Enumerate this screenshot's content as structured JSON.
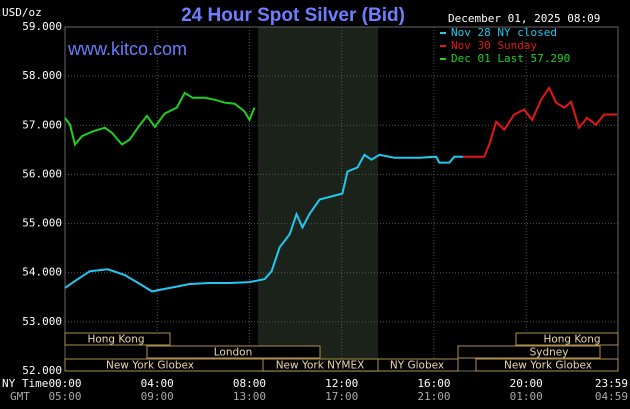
{
  "chart_data": {
    "type": "line",
    "title": "24 Hour Spot Silver (Bid)",
    "y_label": "USD/oz",
    "website": "www.kitco.com",
    "timestamp": "December 01, 2025 08:09",
    "x_label": "NY Time",
    "x2_label": "GMT",
    "xlim": [
      0,
      23.983
    ],
    "xticks": [
      {
        "value": 0,
        "label": "00:00"
      },
      {
        "value": 4,
        "label": "04:00"
      },
      {
        "value": 8,
        "label": "08:00"
      },
      {
        "value": 12,
        "label": "12:00"
      },
      {
        "value": 16,
        "label": "16:00"
      },
      {
        "value": 20,
        "label": "20:00"
      },
      {
        "value": 23.983,
        "label": "23:59"
      }
    ],
    "x2tick_labels": [
      "05:00",
      "09:00",
      "13:00",
      "17:00",
      "21:00",
      "01:00",
      "04:59"
    ],
    "ylim": [
      52,
      59
    ],
    "yticks": [
      {
        "value": 52,
        "label": "52.000"
      },
      {
        "value": 53,
        "label": "53.000"
      },
      {
        "value": 54,
        "label": "54.000"
      },
      {
        "value": 55,
        "label": "55.000"
      },
      {
        "value": 56,
        "label": "56.000"
      },
      {
        "value": 57,
        "label": "57.000"
      },
      {
        "value": 58,
        "label": "58.000"
      },
      {
        "value": 59,
        "label": "59.000"
      }
    ],
    "grid": true,
    "legend": "top-right",
    "sessions": [
      "Hong Kong",
      "London",
      "New York Globex",
      "New York NYMEX",
      "NY Globex",
      "Hong Kong",
      "Sydney",
      "New York Globex"
    ],
    "series": [
      {
        "name": "Nov 28 NY closed",
        "color": "#22c8f0",
        "x": [
          0,
          0.43,
          1.08,
          1.86,
          2.6,
          3.25,
          3.77,
          4.33,
          4.76,
          5.41,
          6.28,
          7.14,
          8.0,
          8.66,
          8.96,
          9.31,
          9.74,
          10.04,
          10.3,
          10.6,
          11.04,
          11.69,
          12.03,
          12.25,
          12.68,
          12.99,
          13.29,
          13.64,
          14.29,
          15.37,
          16.1,
          16.23,
          16.67,
          16.88,
          17.27
        ],
        "values": [
          53.69,
          53.83,
          54.03,
          54.07,
          53.95,
          53.77,
          53.62,
          53.67,
          53.71,
          53.77,
          53.79,
          53.79,
          53.81,
          53.87,
          54.03,
          54.52,
          54.78,
          55.19,
          54.92,
          55.19,
          55.49,
          55.57,
          55.61,
          56.06,
          56.14,
          56.4,
          56.3,
          56.4,
          56.34,
          56.34,
          56.36,
          56.24,
          56.24,
          56.36,
          56.36
        ]
      },
      {
        "name": "Nov 30 Sunday",
        "color": "#e01818",
        "x": [
          17.27,
          18.18,
          18.4,
          18.7,
          19.05,
          19.48,
          19.91,
          20.26,
          20.65,
          21.0,
          21.3,
          21.65,
          21.95,
          22.29,
          22.64,
          23.03,
          23.38,
          23.94
        ],
        "values": [
          56.36,
          56.36,
          56.61,
          57.07,
          56.91,
          57.22,
          57.32,
          57.11,
          57.52,
          57.76,
          57.46,
          57.36,
          57.48,
          56.95,
          57.15,
          57.01,
          57.22,
          57.22
        ]
      },
      {
        "name": "Dec 01 Last 57.290",
        "color": "#20d020",
        "x": [
          0,
          0.22,
          0.43,
          0.74,
          1.17,
          1.73,
          2.03,
          2.47,
          2.81,
          3.16,
          3.55,
          3.9,
          4.33,
          4.85,
          5.19,
          5.54,
          6.06,
          6.49,
          6.93,
          7.36,
          7.79,
          8.0,
          8.22
        ],
        "values": [
          57.15,
          57.01,
          56.61,
          56.78,
          56.87,
          56.95,
          56.85,
          56.61,
          56.71,
          56.95,
          57.19,
          56.97,
          57.24,
          57.36,
          57.66,
          57.56,
          57.56,
          57.52,
          57.46,
          57.44,
          57.28,
          57.11,
          57.36
        ]
      }
    ]
  }
}
